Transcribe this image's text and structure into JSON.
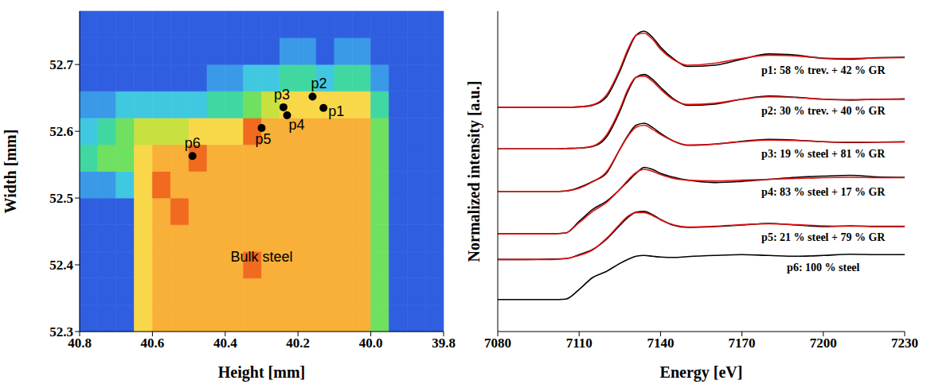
{
  "chart_data": [
    {
      "type": "heatmap",
      "xlabel": "Height [mm]",
      "ylabel": "Width [mm]",
      "xlim": [
        40.8,
        39.8
      ],
      "ylim": [
        52.3,
        52.78
      ],
      "xticks": [
        40.8,
        40.6,
        40.4,
        40.2,
        {
          "value": 40,
          "label": "40.0"
        },
        39.8
      ],
      "yticks": [
        52.3,
        52.4,
        52.5,
        52.6,
        52.7
      ],
      "x_edges": [
        40.8,
        40.75,
        40.7,
        40.65,
        40.6,
        40.55,
        40.5,
        40.45,
        40.4,
        40.35,
        40.3,
        40.25,
        40.2,
        40.15,
        40.1,
        40.05,
        40.0,
        39.95,
        39.9,
        39.85,
        39.8
      ],
      "y_edges": [
        52.3,
        52.34,
        52.38,
        52.42,
        52.46,
        52.5,
        52.54,
        52.58,
        52.62,
        52.66,
        52.7,
        52.74,
        52.78
      ],
      "zlim": [
        0,
        10
      ],
      "z": [
        [
          1,
          1,
          1,
          7,
          8,
          8,
          8,
          8,
          8,
          8,
          8,
          8,
          8,
          8,
          8,
          8,
          5,
          1,
          1,
          1
        ],
        [
          1,
          1,
          1,
          7,
          8,
          8,
          8,
          8,
          8,
          8,
          8,
          8,
          8,
          8,
          8,
          8,
          5,
          1,
          1,
          1
        ],
        [
          1,
          1,
          1,
          7,
          8,
          8,
          8,
          8,
          8,
          9,
          8,
          8,
          8,
          8,
          8,
          8,
          5,
          1,
          1,
          1
        ],
        [
          1,
          1,
          1,
          7,
          8,
          8,
          8,
          8,
          8,
          8,
          8,
          8,
          8,
          8,
          8,
          8,
          5,
          1,
          1,
          1
        ],
        [
          1,
          1,
          1,
          7,
          8,
          9,
          8,
          8,
          8,
          8,
          8,
          8,
          8,
          8,
          8,
          8,
          5,
          1,
          1,
          1
        ],
        [
          2,
          2,
          3,
          7,
          9,
          8,
          8,
          8,
          8,
          8,
          8,
          8,
          8,
          8,
          8,
          8,
          5,
          1,
          1,
          1
        ],
        [
          4,
          5,
          5,
          7,
          8,
          8,
          9,
          8,
          8,
          8,
          8,
          8,
          8,
          8,
          8,
          8,
          5,
          1,
          1,
          1
        ],
        [
          3,
          4,
          5,
          6,
          6,
          6,
          7,
          7,
          7,
          9,
          8,
          8,
          8,
          8,
          8,
          8,
          5,
          1,
          1,
          1
        ],
        [
          2,
          2,
          3,
          3,
          3,
          3,
          3,
          4,
          4,
          5,
          6,
          7,
          7,
          7,
          7,
          7,
          4,
          1,
          1,
          1
        ],
        [
          1,
          1,
          1,
          1,
          1,
          1,
          1,
          2,
          2,
          3,
          3,
          4,
          4,
          3,
          4,
          4,
          2,
          1,
          1,
          1
        ],
        [
          1,
          1,
          1,
          1,
          1,
          1,
          1,
          1,
          1,
          1,
          1,
          2,
          2,
          1,
          2,
          2,
          1,
          1,
          1,
          1
        ],
        [
          1,
          1,
          1,
          1,
          1,
          1,
          1,
          1,
          1,
          1,
          1,
          1,
          1,
          1,
          1,
          1,
          1,
          1,
          1,
          1
        ]
      ],
      "points": {
        "labels": [
          "p1",
          "p2",
          "p3",
          "p4",
          "p5",
          "p6"
        ],
        "x": [
          40.13,
          40.16,
          40.24,
          40.23,
          40.3,
          40.49
        ],
        "y": [
          52.635,
          52.652,
          52.636,
          52.624,
          52.605,
          52.563
        ],
        "color": "#000000"
      },
      "annotations": [
        {
          "text": "Bulk steel",
          "x": 40.3,
          "y": 52.41
        }
      ]
    },
    {
      "type": "line",
      "xlabel": "Energy [eV]",
      "ylabel": "Normalized intensity [a.u.]",
      "xlim": [
        7080,
        7230
      ],
      "xticks": [
        7080,
        7110,
        7140,
        7170,
        7200,
        7230
      ],
      "ylim": [
        0,
        8
      ],
      "tick_labels": "x",
      "x": [
        7080,
        7090,
        7100,
        7105,
        7110,
        7115,
        7120,
        7125,
        7128,
        7131,
        7134,
        7137,
        7140,
        7145,
        7150,
        7160,
        7170,
        7180,
        7190,
        7200,
        7210,
        7220,
        7230
      ],
      "series": [
        {
          "name": "p1: 58 % trev. + 42 % GR",
          "color": "#000000",
          "values": [
            5.6,
            5.6,
            5.6,
            5.6,
            5.61,
            5.65,
            5.85,
            6.5,
            7.0,
            7.4,
            7.5,
            7.35,
            7.1,
            6.8,
            6.62,
            6.65,
            6.8,
            6.93,
            6.9,
            6.82,
            6.8,
            6.84,
            6.85
          ],
          "fit": {
            "color": "#e01010",
            "values": [
              5.6,
              5.6,
              5.6,
              5.6,
              5.61,
              5.66,
              5.9,
              6.55,
              7.05,
              7.4,
              7.45,
              7.3,
              7.05,
              6.78,
              6.65,
              6.7,
              6.82,
              6.9,
              6.88,
              6.83,
              6.82,
              6.83,
              6.84
            ]
          }
        },
        {
          "name": "p2: 30 % trev. + 40 % GR",
          "color": "#000000",
          "values": [
            4.56,
            4.56,
            4.56,
            4.57,
            4.58,
            4.62,
            4.85,
            5.5,
            6.0,
            6.35,
            6.42,
            6.3,
            6.1,
            5.8,
            5.65,
            5.68,
            5.8,
            5.88,
            5.85,
            5.8,
            5.78,
            5.8,
            5.81
          ],
          "fit": {
            "color": "#e01010",
            "values": [
              4.56,
              4.56,
              4.56,
              4.57,
              4.58,
              4.63,
              4.9,
              5.55,
              6.05,
              6.35,
              6.38,
              6.25,
              6.05,
              5.78,
              5.67,
              5.7,
              5.8,
              5.86,
              5.84,
              5.8,
              5.79,
              5.8,
              5.8
            ]
          }
        },
        {
          "name": "p3: 19 % steel + 81 % GR",
          "color": "#000000",
          "values": [
            3.5,
            3.5,
            3.5,
            3.51,
            3.6,
            3.75,
            3.95,
            4.55,
            4.9,
            5.15,
            5.2,
            5.1,
            4.95,
            4.75,
            4.65,
            4.68,
            4.75,
            4.8,
            4.78,
            4.74,
            4.72,
            4.73,
            4.74
          ],
          "fit": {
            "color": "#e01010",
            "values": [
              3.5,
              3.5,
              3.5,
              3.51,
              3.58,
              3.74,
              3.98,
              4.55,
              4.88,
              5.1,
              5.15,
              5.05,
              4.92,
              4.75,
              4.66,
              4.68,
              4.74,
              4.78,
              4.77,
              4.74,
              4.73,
              4.73,
              4.73
            ]
          }
        },
        {
          "name": "p4: 83 % steel + 17 % GR",
          "color": "#000000",
          "values": [
            2.44,
            2.44,
            2.44,
            2.46,
            2.75,
            3.05,
            3.25,
            3.55,
            3.75,
            3.95,
            4.1,
            4.05,
            3.95,
            3.85,
            3.78,
            3.72,
            3.75,
            3.8,
            3.85,
            3.88,
            3.9,
            3.86,
            3.85
          ],
          "fit": {
            "color": "#e01010",
            "values": [
              2.44,
              2.44,
              2.44,
              2.46,
              2.72,
              3.0,
              3.22,
              3.55,
              3.78,
              3.97,
              4.05,
              4.0,
              3.92,
              3.82,
              3.78,
              3.76,
              3.78,
              3.8,
              3.82,
              3.84,
              3.85,
              3.84,
              3.84
            ]
          }
        },
        {
          "name": "p5: 21 % steel + 79 % GR",
          "color": "#000000",
          "values": [
            1.8,
            1.8,
            1.81,
            1.82,
            1.92,
            2.05,
            2.3,
            2.65,
            2.85,
            2.98,
            3.0,
            2.92,
            2.8,
            2.65,
            2.6,
            2.62,
            2.66,
            2.7,
            2.66,
            2.62,
            2.64,
            2.62,
            2.62
          ],
          "fit": {
            "color": "#e01010",
            "values": [
              1.8,
              1.8,
              1.8,
              1.82,
              1.9,
              2.04,
              2.32,
              2.68,
              2.88,
              2.97,
              2.97,
              2.9,
              2.79,
              2.66,
              2.61,
              2.63,
              2.67,
              2.69,
              2.67,
              2.64,
              2.63,
              2.63,
              2.63
            ]
          }
        },
        {
          "name": "p6: 100 % steel",
          "color": "#000000",
          "values": [
            0.8,
            0.8,
            0.8,
            0.81,
            1.05,
            1.35,
            1.5,
            1.7,
            1.8,
            1.88,
            1.9,
            1.88,
            1.86,
            1.85,
            1.87,
            1.9,
            1.92,
            1.9,
            1.88,
            1.9,
            1.93,
            1.92,
            1.92
          ]
        }
      ]
    }
  ]
}
